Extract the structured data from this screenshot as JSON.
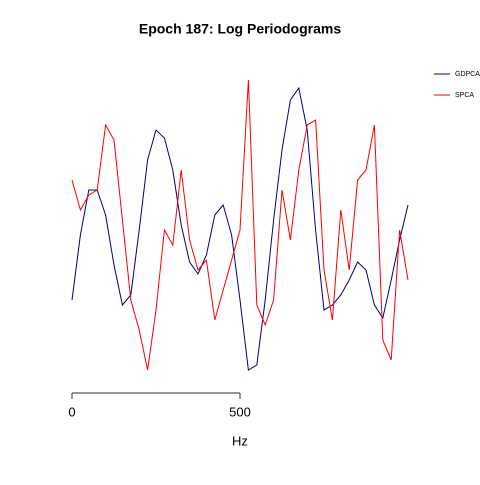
{
  "chart_data": {
    "type": "line",
    "title": "Epoch 187: Log Periodograms",
    "xlabel": "Hz",
    "x": [
      0,
      25,
      50,
      75,
      100,
      125,
      150,
      175,
      200,
      225,
      250,
      275,
      300,
      325,
      350,
      375,
      400,
      425,
      450,
      475,
      500,
      525,
      550,
      575,
      600,
      625,
      650,
      675,
      700,
      725,
      750,
      775,
      800,
      825,
      850,
      875,
      900,
      925,
      950,
      975,
      1000
    ],
    "series": [
      {
        "name": "GDPCA",
        "color": "#000080",
        "values": [
          85,
          150,
          195,
          195,
          170,
          120,
          80,
          90,
          155,
          225,
          255,
          247,
          215,
          160,
          123,
          111,
          130,
          170,
          180,
          150,
          85,
          15,
          20,
          85,
          165,
          235,
          285,
          297,
          255,
          155,
          75,
          80,
          90,
          105,
          123,
          115,
          80,
          67,
          105,
          145,
          180
        ]
      },
      {
        "name": "SPCA",
        "color": "#ff0000",
        "values": [
          205,
          175,
          190,
          195,
          260,
          245,
          165,
          85,
          55,
          15,
          75,
          155,
          140,
          215,
          145,
          115,
          125,
          65,
          95,
          125,
          155,
          305,
          80,
          60,
          85,
          195,
          145,
          215,
          260,
          265,
          115,
          65,
          175,
          115,
          205,
          215,
          260,
          45,
          25,
          155,
          105
        ]
      }
    ],
    "xlim": [
      0,
      1000
    ],
    "xticks": [
      0,
      500
    ],
    "ylim": [
      0,
      320
    ],
    "legend": "upper right"
  }
}
